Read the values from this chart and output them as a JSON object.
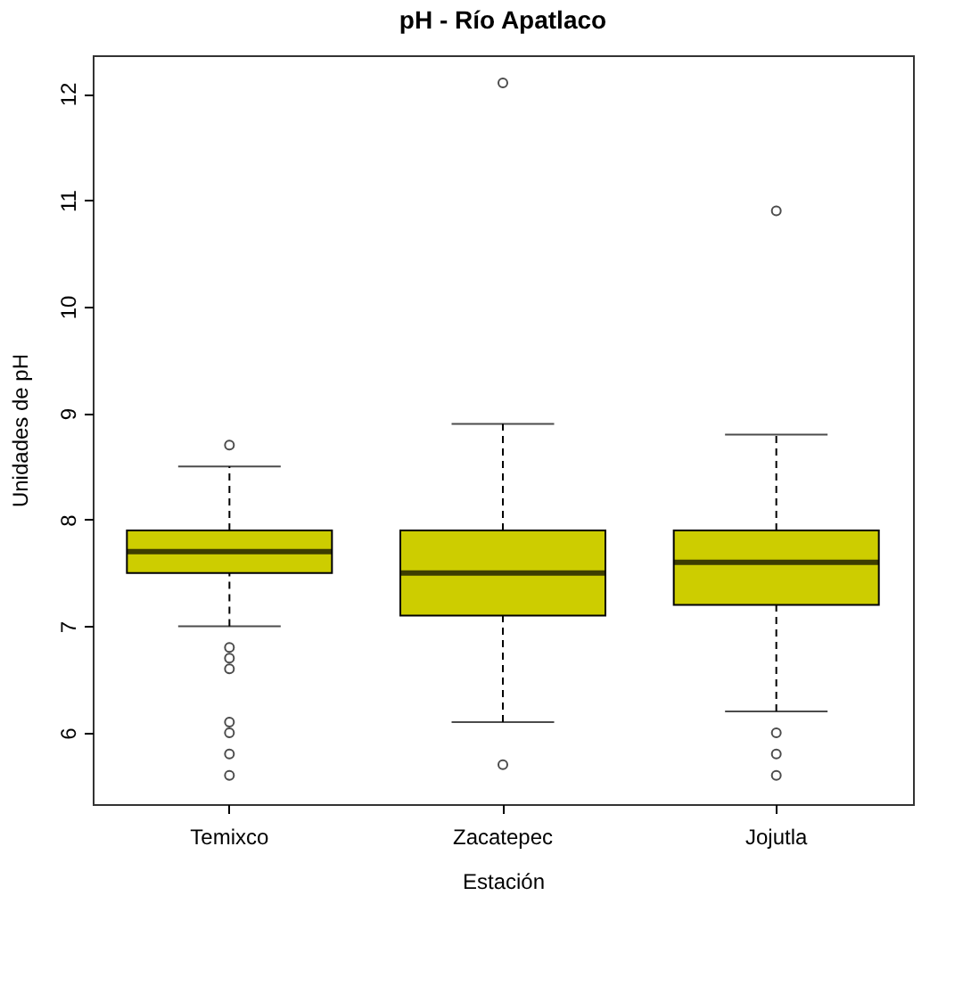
{
  "chart_data": {
    "type": "box",
    "title": "pH - Río Apatlaco",
    "xlabel": "Estación",
    "ylabel": "Unidades de pH",
    "categories": [
      "Temixco",
      "Zacatepec",
      "Jojutla"
    ],
    "boxes": [
      {
        "low": 7.0,
        "q1": 7.5,
        "median": 7.7,
        "q3": 7.9,
        "high": 8.5,
        "outliers": [
          8.7,
          6.8,
          6.7,
          6.6,
          6.1,
          6.0,
          5.8,
          5.6
        ]
      },
      {
        "low": 6.1,
        "q1": 7.1,
        "median": 7.5,
        "q3": 7.9,
        "high": 8.9,
        "outliers": [
          12.1,
          5.7
        ]
      },
      {
        "low": 6.2,
        "q1": 7.2,
        "median": 7.6,
        "q3": 7.9,
        "high": 8.8,
        "outliers": [
          10.9,
          6.0,
          5.8,
          5.6
        ]
      }
    ],
    "color": "#cdcd00",
    "ylim": [
      5.33,
      12.36
    ],
    "yticks": [
      6,
      7,
      8,
      9,
      10,
      11,
      12
    ],
    "grid": false
  }
}
